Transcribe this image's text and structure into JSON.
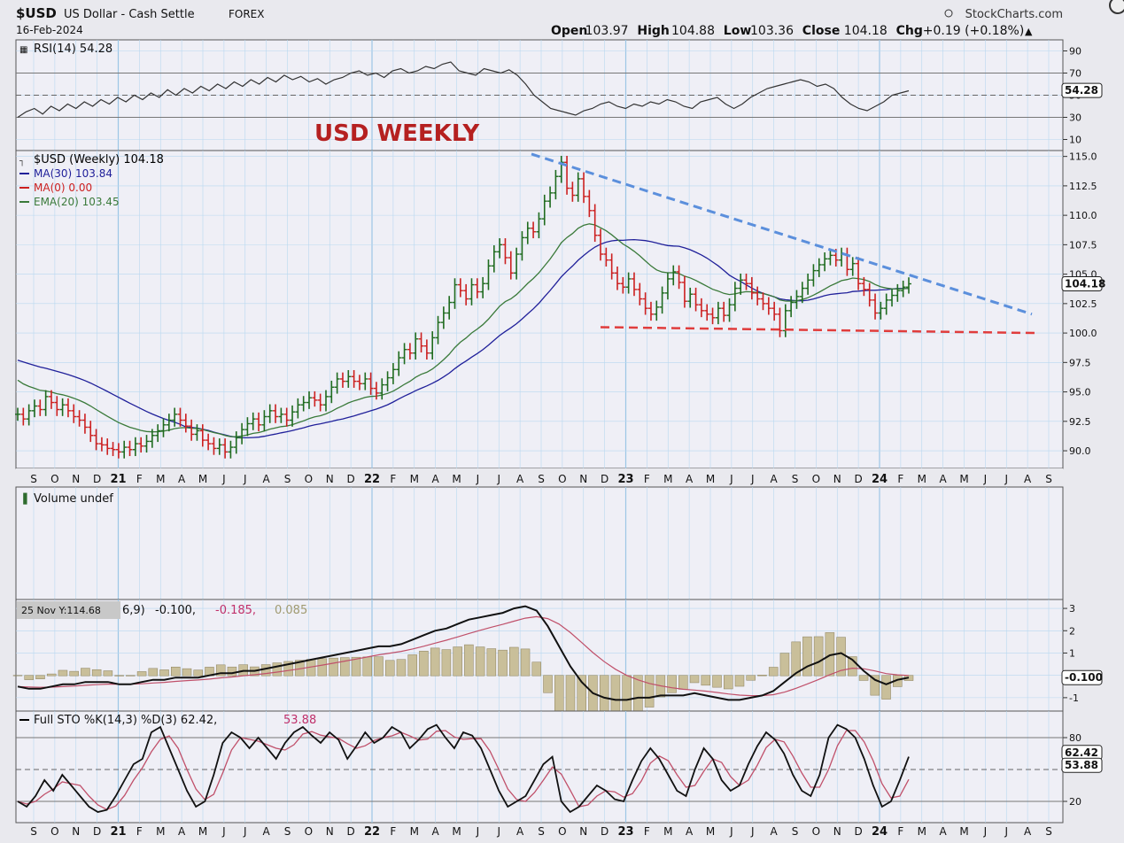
{
  "header": {
    "symbol": "$USD",
    "name": "US Dollar - Cash Settle",
    "exchange": "FOREX",
    "date": "16-Feb-2024",
    "brand": "StockCharts.com",
    "quote": [
      {
        "label": "Open",
        "value": "103.97"
      },
      {
        "label": "High",
        "value": "104.88"
      },
      {
        "label": "Low",
        "value": "103.36"
      },
      {
        "label": "Close",
        "value": "104.18"
      },
      {
        "label": "Chg",
        "value": "+0.19 (+0.18%)"
      }
    ],
    "chg_arrow": "▲"
  },
  "annotation": "USD WEEKLY",
  "colors": {
    "up": "#1f6b1f",
    "down": "#cc2020",
    "ma30": "#20209a",
    "ema20": "#3a7a3a",
    "trend_blue": "#5b8fdc",
    "trend_red": "#e03c3c",
    "panel_bg": "#efeff6",
    "grid": "#b8d8f0"
  },
  "panels": {
    "rsi": {
      "label": "RSI(14) 54.28",
      "ticks": [
        "90",
        "70",
        "50",
        "30",
        "10"
      ],
      "current": "54.28",
      "chart_data": {
        "type": "line",
        "ylim": [
          0,
          100
        ],
        "levels": [
          70,
          30
        ],
        "values": [
          30,
          35,
          38,
          33,
          40,
          36,
          42,
          38,
          44,
          40,
          46,
          42,
          48,
          44,
          50,
          46,
          52,
          48,
          55,
          50,
          56,
          52,
          58,
          54,
          60,
          56,
          62,
          58,
          64,
          60,
          66,
          62,
          68,
          64,
          67,
          62,
          65,
          60,
          64,
          66,
          70,
          72,
          68,
          70,
          66,
          72,
          74,
          70,
          72,
          76,
          74,
          78,
          80,
          72,
          70,
          68,
          74,
          72,
          70,
          73,
          68,
          60,
          50,
          44,
          38,
          36,
          34,
          32,
          36,
          38,
          42,
          44,
          40,
          38,
          42,
          40,
          44,
          42,
          46,
          44,
          40,
          38,
          44,
          46,
          48,
          42,
          38,
          42,
          48,
          52,
          56,
          58,
          60,
          62,
          64,
          62,
          58,
          60,
          56,
          48,
          42,
          38,
          36,
          40,
          44,
          50,
          52,
          54
        ]
      }
    },
    "price": {
      "legend": [
        {
          "label": "$USD (Weekly) 104.18",
          "color": "#000000"
        },
        {
          "label": "MA(30) 103.84",
          "color": "#20209a"
        },
        {
          "label": "MA(0) 0.00",
          "color": "#cc2020"
        },
        {
          "label": "EMA(20) 103.45",
          "color": "#3a7a3a"
        }
      ],
      "ticks": [
        "115.0",
        "112.5",
        "110.0",
        "107.5",
        "105.0",
        "102.5",
        "100.0",
        "97.5",
        "95.0",
        "92.5",
        "90.0"
      ],
      "current": "104.18",
      "chart_data": {
        "type": "line",
        "ylim": [
          88.5,
          115.5
        ],
        "close": [
          93.1,
          92.7,
          93.4,
          93.8,
          93.5,
          94.6,
          94.1,
          93.5,
          93.9,
          93.4,
          92.9,
          92.6,
          92.0,
          91.3,
          90.6,
          90.5,
          90.2,
          90.1,
          89.9,
          90.3,
          90.1,
          90.6,
          90.4,
          90.8,
          91.3,
          91.7,
          92.2,
          92.6,
          93.1,
          92.6,
          92.1,
          91.4,
          91.7,
          90.9,
          90.6,
          90.2,
          90.5,
          89.9,
          90.3,
          91.1,
          91.8,
          92.3,
          92.7,
          92.2,
          92.9,
          93.4,
          92.9,
          93.1,
          92.6,
          93.3,
          93.9,
          94.1,
          94.5,
          94.3,
          93.9,
          94.6,
          95.4,
          96.1,
          95.9,
          96.3,
          95.9,
          95.7,
          96.1,
          95.3,
          94.9,
          95.6,
          96.2,
          96.9,
          97.9,
          98.6,
          98.3,
          99.5,
          98.9,
          98.3,
          99.6,
          100.9,
          101.7,
          102.6,
          104.1,
          103.6,
          102.9,
          104.1,
          103.5,
          104.2,
          105.7,
          106.9,
          107.5,
          106.4,
          105.1,
          106.7,
          108.1,
          108.9,
          108.6,
          109.7,
          111.2,
          111.9,
          113.3,
          114.5,
          112.3,
          111.7,
          113.1,
          111.6,
          110.4,
          108.3,
          106.7,
          106.2,
          105.1,
          104.2,
          103.9,
          104.6,
          103.7,
          102.9,
          102.1,
          101.6,
          102.2,
          103.4,
          104.6,
          105.2,
          104.3,
          102.7,
          103.3,
          102.4,
          101.9,
          101.6,
          101.3,
          102.1,
          101.5,
          102.4,
          103.8,
          104.5,
          104.2,
          103.4,
          102.9,
          102.5,
          102.1,
          101.6,
          100.2,
          101.9,
          102.6,
          103.1,
          103.8,
          104.5,
          105.3,
          105.8,
          106.3,
          106.6,
          106.2,
          106.7,
          105.4,
          105.9,
          104.2,
          103.7,
          102.8,
          101.7,
          102.1,
          102.8,
          103.2,
          103.6,
          103.9,
          104.18
        ],
        "ma30_start": 97.7,
        "ema20_start": 96.3,
        "trendlines": [
          {
            "name": "resistance",
            "from": {
              "week": "2022-09",
              "y": 115.2
            },
            "to": {
              "week": "2024-08",
              "y": 101.6
            }
          },
          {
            "name": "support",
            "from": {
              "week": "2022-11",
              "y": 100.5
            },
            "to": {
              "week": "2024-09",
              "y": 100.0
            }
          }
        ]
      }
    },
    "volume": {
      "label": "Volume undef"
    },
    "macd": {
      "tooltip": "25 Nov Y:114.68",
      "label_suffix": "6,9)",
      "values": [
        "-0.100",
        "-0.185",
        "0.085"
      ],
      "ticks": [
        "3",
        "2",
        "1",
        "0",
        "-1"
      ],
      "current": "-0.100",
      "chart_data": {
        "type": "line",
        "ylim": [
          -1.6,
          3.4
        ],
        "macd": [
          -0.5,
          -0.6,
          -0.6,
          -0.5,
          -0.4,
          -0.4,
          -0.3,
          -0.3,
          -0.3,
          -0.4,
          -0.4,
          -0.3,
          -0.2,
          -0.2,
          -0.1,
          -0.1,
          -0.1,
          0.0,
          0.1,
          0.1,
          0.2,
          0.2,
          0.3,
          0.4,
          0.5,
          0.6,
          0.7,
          0.8,
          0.9,
          1.0,
          1.1,
          1.2,
          1.3,
          1.3,
          1.4,
          1.6,
          1.8,
          2.0,
          2.1,
          2.3,
          2.5,
          2.6,
          2.7,
          2.8,
          3.0,
          3.1,
          2.9,
          2.2,
          1.3,
          0.4,
          -0.3,
          -0.8,
          -1.0,
          -1.1,
          -1.1,
          -1.0,
          -1.0,
          -0.9,
          -0.9,
          -0.9,
          -0.8,
          -0.9,
          -1.0,
          -1.1,
          -1.1,
          -1.0,
          -0.9,
          -0.7,
          -0.3,
          0.1,
          0.4,
          0.6,
          0.9,
          1.0,
          0.7,
          0.2,
          -0.2,
          -0.4,
          -0.2,
          -0.1
        ]
      }
    },
    "sto": {
      "label": "Full STO %K(14,3) %D(3) 62.42,",
      "label_d": "53.88",
      "ticks": [
        "80",
        "20"
      ],
      "current_k": "62.42",
      "current_d": "53.88",
      "chart_data": {
        "type": "line",
        "ylim": [
          0,
          105
        ],
        "k": [
          20,
          15,
          25,
          40,
          30,
          45,
          35,
          25,
          15,
          10,
          12,
          25,
          40,
          55,
          60,
          85,
          90,
          70,
          50,
          30,
          15,
          20,
          45,
          75,
          85,
          80,
          70,
          80,
          70,
          60,
          75,
          85,
          90,
          82,
          75,
          85,
          78,
          60,
          72,
          85,
          75,
          80,
          90,
          85,
          70,
          78,
          88,
          92,
          80,
          70,
          85,
          82,
          70,
          50,
          30,
          15,
          20,
          25,
          40,
          55,
          62,
          20,
          10,
          15,
          25,
          35,
          30,
          22,
          20,
          40,
          58,
          70,
          60,
          45,
          30,
          25,
          50,
          70,
          60,
          40,
          30,
          35,
          55,
          72,
          85,
          78,
          65,
          45,
          30,
          25,
          45,
          80,
          92,
          88,
          80,
          60,
          35,
          15,
          20,
          40,
          62
        ]
      }
    }
  },
  "x_axis": [
    "S",
    "O",
    "N",
    "D",
    "21",
    "F",
    "M",
    "A",
    "M",
    "J",
    "J",
    "A",
    "S",
    "O",
    "N",
    "D",
    "22",
    "F",
    "M",
    "A",
    "M",
    "J",
    "J",
    "A",
    "S",
    "O",
    "N",
    "D",
    "23",
    "F",
    "M",
    "A",
    "M",
    "J",
    "J",
    "A",
    "S",
    "O",
    "N",
    "D",
    "24",
    "F",
    "M",
    "A",
    "M",
    "J",
    "J",
    "A",
    "S"
  ]
}
